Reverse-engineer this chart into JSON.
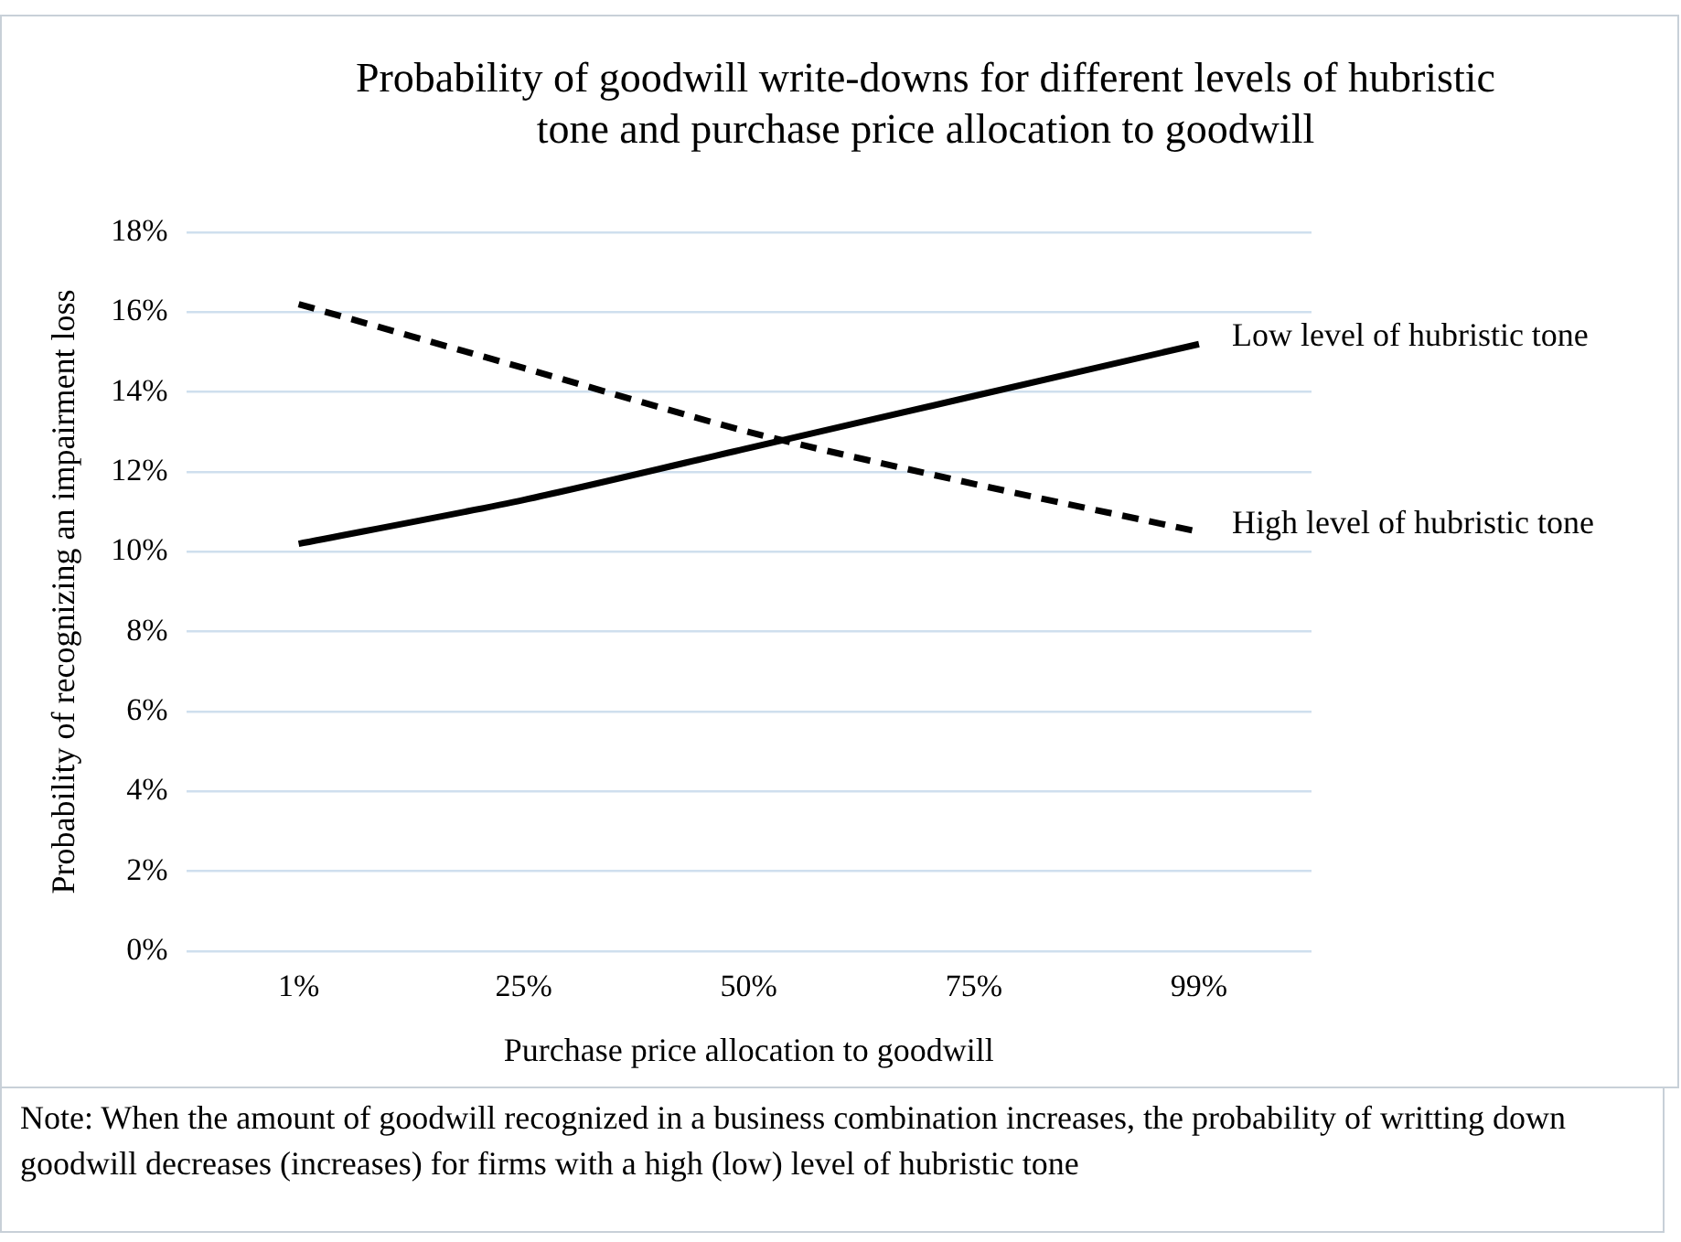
{
  "chart_data": {
    "type": "line",
    "title": "Probability of goodwill write-downs for different levels of hubristic tone and purchase price allocation to goodwill",
    "xlabel": "Purchase price allocation to goodwill",
    "ylabel": "Probability of recognizing an impairment loss",
    "categories": [
      "1%",
      "25%",
      "50%",
      "75%",
      "99%"
    ],
    "series": [
      {
        "name": "Low level of hubristic tone",
        "color": "#000000",
        "line_style": "solid",
        "values": [
          10.2,
          11.3,
          12.6,
          13.9,
          15.2
        ]
      },
      {
        "name": "High level of hubristic tone",
        "color": "#000000",
        "line_style": "dashed",
        "values": [
          16.2,
          14.6,
          13.0,
          11.7,
          10.5
        ]
      }
    ],
    "ylim": [
      0,
      18
    ],
    "yticks": [
      {
        "value": 0,
        "label": "0%"
      },
      {
        "value": 2,
        "label": "2%"
      },
      {
        "value": 4,
        "label": "4%"
      },
      {
        "value": 6,
        "label": "6%"
      },
      {
        "value": 8,
        "label": "8%"
      },
      {
        "value": 10,
        "label": "10%"
      },
      {
        "value": 12,
        "label": "12%"
      },
      {
        "value": 14,
        "label": "14%"
      },
      {
        "value": 16,
        "label": "16%"
      },
      {
        "value": 18,
        "label": "18%"
      }
    ],
    "grid": "y",
    "legend": false,
    "marker": "none",
    "annotations": [
      "Note: When the amount of goodwill recognized in a business combination increases, the probability of writting down goodwill decreases (increases) for firms with a high (low) level of hubristic tone"
    ]
  }
}
